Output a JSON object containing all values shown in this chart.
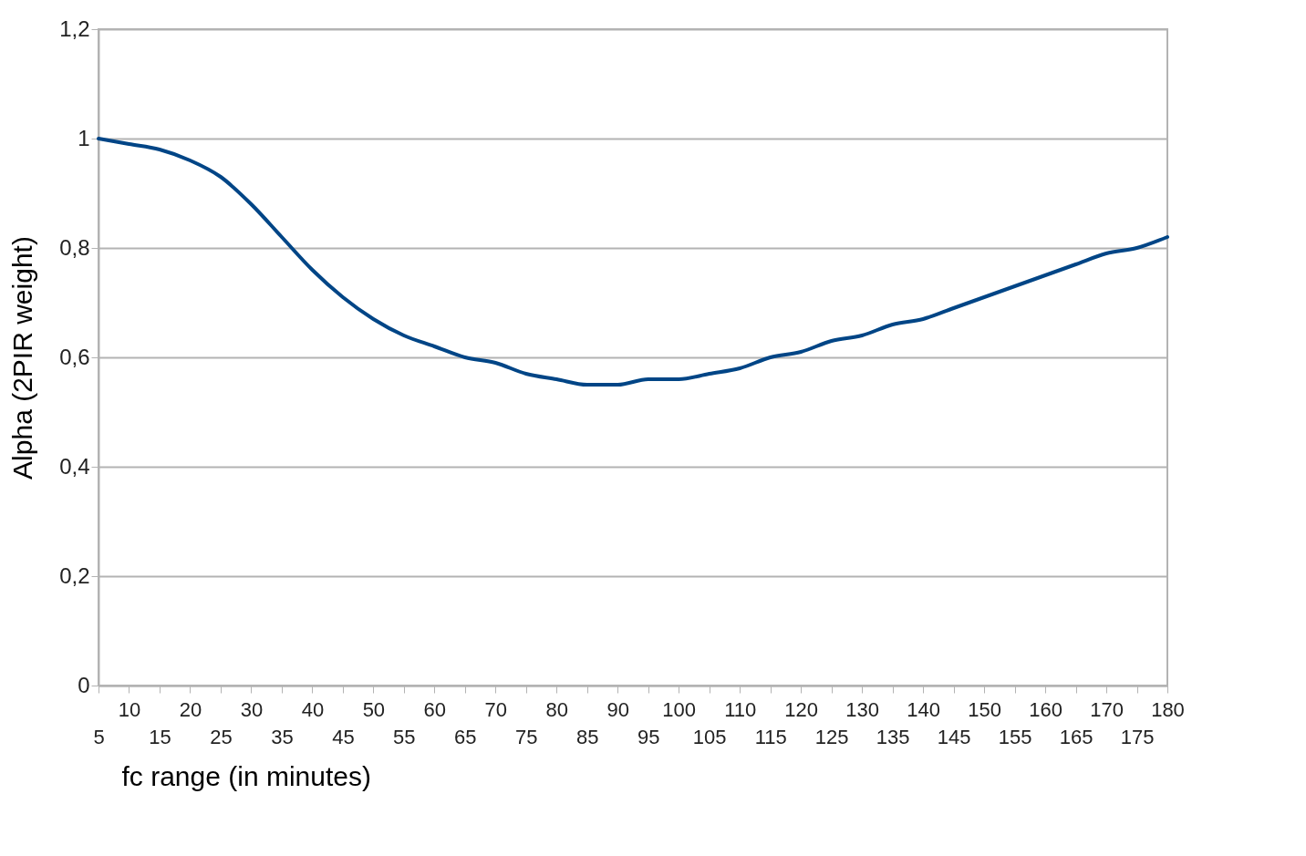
{
  "chart_data": {
    "type": "line",
    "xlabel": "fc range (in minutes)",
    "ylabel": "Alpha (2PIR weight)",
    "categories": [
      "5",
      "10",
      "15",
      "20",
      "25",
      "30",
      "35",
      "40",
      "45",
      "50",
      "55",
      "60",
      "65",
      "70",
      "75",
      "80",
      "85",
      "90",
      "95",
      "100",
      "105",
      "110",
      "115",
      "120",
      "125",
      "130",
      "135",
      "140",
      "145",
      "150",
      "155",
      "160",
      "165",
      "170",
      "175",
      "180"
    ],
    "series": [
      {
        "color": "#004586",
        "values": [
          1.0,
          0.99,
          0.98,
          0.96,
          0.93,
          0.88,
          0.82,
          0.76,
          0.71,
          0.67,
          0.64,
          0.62,
          0.6,
          0.59,
          0.57,
          0.56,
          0.55,
          0.55,
          0.56,
          0.56,
          0.57,
          0.58,
          0.6,
          0.61,
          0.63,
          0.64,
          0.66,
          0.67,
          0.69,
          0.71,
          0.73,
          0.75,
          0.77,
          0.79,
          0.8,
          0.82
        ]
      }
    ],
    "ylim": [
      0,
      1.2
    ],
    "yticks": [
      0,
      {
        "value": 0.2,
        "label": "0,2"
      },
      {
        "value": 0.4,
        "label": "0,4"
      },
      {
        "value": 0.6,
        "label": "0,6"
      },
      {
        "value": 0.8,
        "label": "0,8"
      },
      1,
      {
        "value": 1.2,
        "label": "1,2"
      }
    ],
    "grid": "y",
    "marker": "none",
    "line_style": "solid"
  }
}
